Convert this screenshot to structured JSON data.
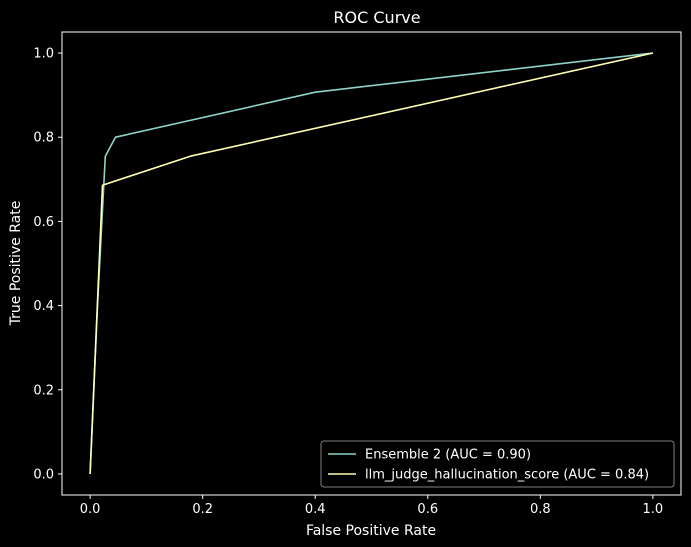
{
  "chart_data": {
    "type": "line",
    "title": "ROC Curve",
    "xlabel": "False Positive Rate",
    "ylabel": "True Positive Rate",
    "xlim": [
      -0.05,
      1.05
    ],
    "ylim": [
      -0.05,
      1.05
    ],
    "xticks": [
      "0.0",
      "0.2",
      "0.4",
      "0.6",
      "0.8",
      "1.0"
    ],
    "yticks": [
      "0.0",
      "0.2",
      "0.4",
      "0.6",
      "0.8",
      "1.0"
    ],
    "grid": false,
    "legend_position": "bottom-right",
    "background": "#000000",
    "series": [
      {
        "name": "Ensemble 2 (AUC = 0.90)",
        "color": "#8dd3c7",
        "x": [
          0.0,
          0.013,
          0.027,
          0.045,
          0.4,
          1.0
        ],
        "y": [
          0.0,
          0.4,
          0.755,
          0.8,
          0.907,
          1.0
        ]
      },
      {
        "name": "llm_judge_hallucination_score (AUC = 0.84)",
        "color": "#ffffb3",
        "x": [
          0.0,
          0.022,
          0.178,
          1.0
        ],
        "y": [
          0.0,
          0.686,
          0.755,
          1.0
        ]
      }
    ]
  }
}
